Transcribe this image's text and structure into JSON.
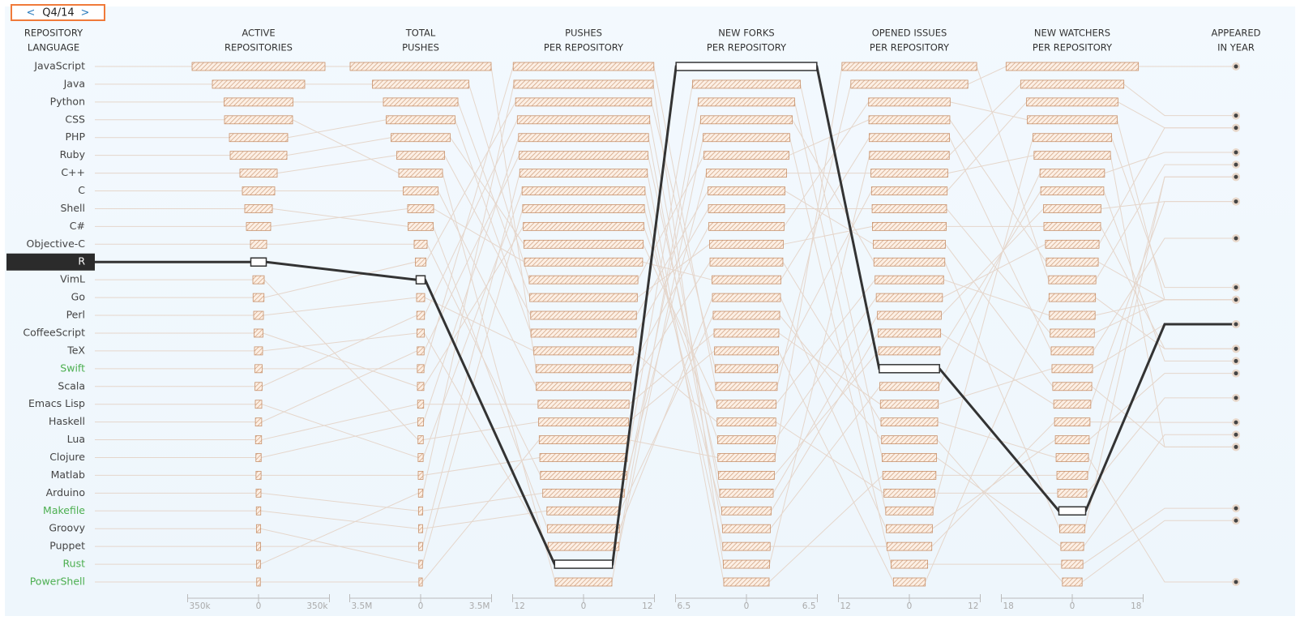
{
  "chart_data": {
    "type": "parallel",
    "period": "Q4/14",
    "prev": "<",
    "next": ">",
    "label_header": [
      "REPOSITORY",
      "LANGUAGE"
    ],
    "categories": [
      "JavaScript",
      "Java",
      "Python",
      "CSS",
      "PHP",
      "Ruby",
      "C++",
      "C",
      "Shell",
      "C#",
      "Objective-C",
      "R",
      "VimL",
      "Go",
      "Perl",
      "CoffeeScript",
      "TeX",
      "Swift",
      "Scala",
      "Emacs Lisp",
      "Haskell",
      "Lua",
      "Clojure",
      "Matlab",
      "Arduino",
      "Makefile",
      "Groovy",
      "Puppet",
      "Rust",
      "PowerShell"
    ],
    "label_colors": [
      "#444",
      "#444",
      "#444",
      "#444",
      "#444",
      "#444",
      "#444",
      "#444",
      "#444",
      "#444",
      "#444",
      "#444",
      "#444",
      "#444",
      "#444",
      "#444",
      "#444",
      "#4caf50",
      "#444",
      "#444",
      "#444",
      "#444",
      "#444",
      "#444",
      "#444",
      "#4caf50",
      "#444",
      "#444",
      "#4caf50",
      "#4caf50"
    ],
    "selected": 11,
    "bar_color": "#c8916b",
    "series": [
      {
        "header": [
          "ACTIVE",
          "REPOSITORIES"
        ],
        "xlim": [
          -350000,
          350000
        ],
        "xticks": [
          {
            "value": -350000,
            "label": "350k"
          },
          0,
          {
            "value": 350000,
            "label": "350k"
          }
        ],
        "values": [
          328000,
          228000,
          170000,
          168000,
          144000,
          140000,
          92000,
          80000,
          68000,
          60000,
          40000,
          38000,
          28000,
          27000,
          24000,
          22000,
          20000,
          18000,
          17500,
          16000,
          15500,
          15000,
          13000,
          12500,
          12000,
          11000,
          10500,
          10000,
          9500,
          9000
        ]
      },
      {
        "header": [
          "TOTAL",
          "PUSHES"
        ],
        "xlim": [
          -3500000,
          3500000
        ],
        "xticks": [
          {
            "value": -3500000,
            "label": "3.5M"
          },
          0,
          {
            "value": 3500000,
            "label": "3.5M"
          }
        ],
        "values": [
          3480000,
          2380000,
          1840000,
          1080000,
          1700000,
          1460000,
          1180000,
          860000,
          620000,
          640000,
          320000,
          220000,
          130000,
          260000,
          200000,
          160000,
          180000,
          165000,
          190000,
          125000,
          170000,
          150000,
          140000,
          120000,
          105000,
          100000,
          90000,
          95000,
          110000,
          85000
        ]
      },
      {
        "header": [
          "PUSHES",
          "PER REPOSITORY"
        ],
        "xlim": [
          -12,
          12
        ],
        "xticks": [
          {
            "value": -12,
            "label": "12"
          },
          0,
          12
        ],
        "values": [
          8.05,
          9.2,
          9.1,
          4.8,
          8.9,
          10.1,
          8.95,
          8.0,
          6.1,
          10.0,
          7.3,
          4.9,
          7.6,
          11.5,
          8.4,
          10.2,
          6.0,
          11.9,
          11.2,
          10.4,
          10.9,
          7.7,
          11.0,
          7.4,
          6.9,
          6.2,
          10.3,
          10.8,
          11.8,
          7.5
        ]
      },
      {
        "header": [
          "NEW FORKS",
          "PER REPOSITORY"
        ],
        "xlim": [
          -6.5,
          6.5
        ],
        "xticks": [
          {
            "value": -6.5,
            "label": "6.5"
          },
          0,
          6.5
        ],
        "values": [
          3.45,
          3.9,
          3.38,
          4.42,
          3.49,
          2.71,
          3.53,
          3.34,
          3.12,
          3.16,
          3.68,
          6.45,
          2.93,
          2.86,
          2.69,
          2.64,
          3.97,
          2.82,
          2.45,
          2.17,
          2.56,
          2.97,
          2.19,
          4.94,
          4.2,
          3.05,
          2.27,
          2.08,
          2.12,
          2.62
        ]
      },
      {
        "header": [
          "OPENED ISSUES",
          "PER REPOSITORY"
        ],
        "xlim": [
          -12,
          12
        ],
        "xticks": [
          {
            "value": -12,
            "label": "12"
          },
          0,
          12
        ],
        "values": [
          6.9,
          6.85,
          6.25,
          4.0,
          6.3,
          5.8,
          6.1,
          4.8,
          3.9,
          6.8,
          6.5,
          5.1,
          2.7,
          6.4,
          4.3,
          5.6,
          3.1,
          9.9,
          5.4,
          3.8,
          5.2,
          4.9,
          5.0,
          4.6,
          6.0,
          4.7,
          5.3,
          4.5,
          6.75,
          11.4
        ]
      },
      {
        "header": [
          "NEW WATCHERS",
          "PER REPOSITORY"
        ],
        "xlim": [
          -18,
          18
        ],
        "xticks": [
          {
            "value": -18,
            "label": "18"
          },
          0,
          18
        ],
        "values": [
          11.4,
          6.6,
          7.2,
          10.0,
          5.6,
          5.8,
          4.95,
          4.1,
          4.3,
          5.35,
          9.7,
          3.4,
          5.9,
          11.6,
          3.7,
          6.8,
          2.7,
          16.8,
          7.3,
          4.5,
          8.0,
          5.15,
          8.2,
          2.9,
          3.2,
          2.5,
          4.7,
          3.9,
          13.1,
          6.0
        ]
      }
    ],
    "year": {
      "header": [
        "APPEARED",
        "IN YEAR"
      ],
      "ylim": [
        1972,
        2014
      ],
      "values": [
        1995,
        1995,
        1991,
        1996,
        1995,
        1995,
        1983,
        1972,
        1989,
        2000,
        1983,
        1993,
        1991,
        2009,
        1987,
        2009,
        1978,
        2014,
        2003,
        1985,
        1990,
        1993,
        2007,
        1984,
        2005,
        1977,
        2003,
        2005,
        2010,
        2006
      ]
    }
  }
}
